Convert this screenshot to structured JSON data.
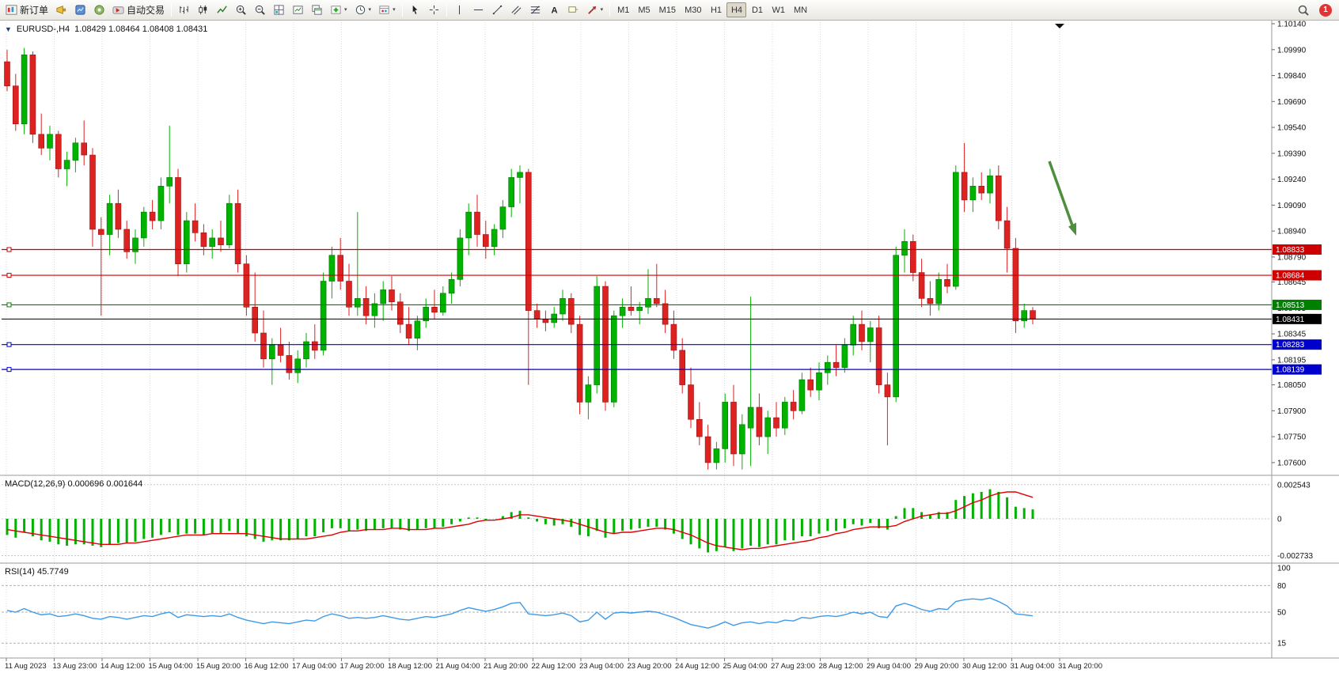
{
  "toolbar": {
    "new_order": "新订单",
    "autotrading": "自动交易",
    "timeframes": [
      "M1",
      "M5",
      "M15",
      "M30",
      "H1",
      "H4",
      "D1",
      "W1",
      "MN"
    ],
    "active_timeframe": "H4",
    "notification_count": "1",
    "icons": [
      "new-order-icon",
      "metaeditor-icon",
      "market-watch-icon",
      "community-icon",
      "autotrading-icon",
      "bar-chart-icon",
      "candlestick-chart-icon",
      "line-chart-icon",
      "zoom-in-icon",
      "zoom-out-icon",
      "tile-windows-icon",
      "arrange-windows-icon",
      "cascade-windows-icon",
      "indicators-icon",
      "periods-icon",
      "templates-icon",
      "cursor-icon",
      "crosshair-icon",
      "vertical-line-icon",
      "horizontal-line-icon",
      "trendline-icon",
      "channel-icon",
      "fibonacci-icon",
      "text-icon",
      "text-label-icon",
      "arrows-icon",
      "search-icon"
    ]
  },
  "chart": {
    "symbol_label": "EURUSD-,H4",
    "ohlc_label": "1.08429 1.08464 1.08408 1.08431",
    "price_axis_labels": [
      "1.10140",
      "1.09990",
      "1.09840",
      "1.09690",
      "1.09540",
      "1.09390",
      "1.09240",
      "1.09090",
      "1.08940",
      "1.08790",
      "1.08645",
      "1.08495",
      "1.08345",
      "1.08195",
      "1.08050",
      "1.07900",
      "1.07750",
      "1.07600"
    ],
    "time_axis_labels": [
      "11 Aug 2023",
      "13 Aug 23:00",
      "14 Aug 12:00",
      "15 Aug 04:00",
      "15 Aug 20:00",
      "16 Aug 12:00",
      "17 Aug 04:00",
      "17 Aug 20:00",
      "18 Aug 12:00",
      "21 Aug 04:00",
      "21 Aug 20:00",
      "22 Aug 12:00",
      "23 Aug 04:00",
      "23 Aug 20:00",
      "24 Aug 12:00",
      "25 Aug 04:00",
      "27 Aug 23:00",
      "28 Aug 12:00",
      "29 Aug 04:00",
      "29 Aug 20:00",
      "30 Aug 12:00",
      "31 Aug 04:00",
      "31 Aug 20:00"
    ],
    "price_tags": [
      {
        "text": "1.08833",
        "price": 1.08833,
        "color": "#cc0000",
        "current": false
      },
      {
        "text": "1.08684",
        "price": 1.08684,
        "color": "#cc0000",
        "current": false
      },
      {
        "text": "1.08513",
        "price": 1.08513,
        "color": "#008000",
        "current": false
      },
      {
        "text": "1.08431",
        "price": 1.08431,
        "color": "#000000",
        "current": true
      },
      {
        "text": "1.08283",
        "price": 1.08283,
        "color": "#0000cc",
        "current": false
      },
      {
        "text": "1.08139",
        "price": 1.08139,
        "color": "#0000cc",
        "current": false
      }
    ],
    "arrow_color": "#4e8f3e"
  },
  "chart_data": {
    "type": "candlestick",
    "symbol": "EURUSD-",
    "timeframe": "H4",
    "current_ohlc": {
      "open": 1.08429,
      "high": 1.08464,
      "low": 1.08408,
      "close": 1.08431
    },
    "price_range": [
      1.076,
      1.1014
    ],
    "up_color": "#00b300",
    "down_color": "#dd2222",
    "candles": [
      [
        1.0992,
        1.0999,
        1.0975,
        1.0978
      ],
      [
        1.0978,
        1.0985,
        1.0952,
        1.0956
      ],
      [
        1.0956,
        1.1,
        1.095,
        1.0996
      ],
      [
        1.0996,
        1.0998,
        1.0945,
        1.095
      ],
      [
        1.095,
        1.0962,
        1.0938,
        1.0942
      ],
      [
        1.0942,
        1.0955,
        1.0935,
        1.095
      ],
      [
        1.095,
        1.0952,
        1.0925,
        1.093
      ],
      [
        1.093,
        1.094,
        1.092,
        1.0935
      ],
      [
        1.0935,
        1.0948,
        1.0928,
        1.0945
      ],
      [
        1.0945,
        1.0958,
        1.0932,
        1.0938
      ],
      [
        1.0938,
        1.0942,
        1.0885,
        1.0895
      ],
      [
        1.0895,
        1.0902,
        1.0845,
        1.0892
      ],
      [
        1.0892,
        1.0915,
        1.088,
        1.091
      ],
      [
        1.091,
        1.0918,
        1.089,
        1.0895
      ],
      [
        1.0895,
        1.09,
        1.0878,
        1.0882
      ],
      [
        1.0882,
        1.0895,
        1.0875,
        1.089
      ],
      [
        1.089,
        1.0908,
        1.0885,
        1.0905
      ],
      [
        1.0905,
        1.0912,
        1.0895,
        1.09
      ],
      [
        1.09,
        1.0925,
        1.0895,
        1.092
      ],
      [
        1.092,
        1.0955,
        1.091,
        1.0925
      ],
      [
        1.0925,
        1.093,
        1.0868,
        1.0875
      ],
      [
        1.0875,
        1.0905,
        1.087,
        1.09
      ],
      [
        1.09,
        1.091,
        1.0888,
        1.0893
      ],
      [
        1.0893,
        1.0898,
        1.088,
        1.0885
      ],
      [
        1.0885,
        1.0895,
        1.0878,
        1.089
      ],
      [
        1.089,
        1.09,
        1.0882,
        1.0886
      ],
      [
        1.0886,
        1.0915,
        1.0884,
        1.091
      ],
      [
        1.091,
        1.0918,
        1.087,
        1.0875
      ],
      [
        1.0875,
        1.088,
        1.0845,
        1.085
      ],
      [
        1.085,
        1.087,
        1.083,
        1.0835
      ],
      [
        1.0835,
        1.0848,
        1.0815,
        1.082
      ],
      [
        1.082,
        1.0832,
        1.0805,
        1.0828
      ],
      [
        1.0828,
        1.0838,
        1.0818,
        1.0822
      ],
      [
        1.0822,
        1.083,
        1.0808,
        1.0812
      ],
      [
        1.0812,
        1.0825,
        1.0806,
        1.082
      ],
      [
        1.082,
        1.0835,
        1.0815,
        1.083
      ],
      [
        1.083,
        1.084,
        1.082,
        1.0825
      ],
      [
        1.0825,
        1.087,
        1.0822,
        1.0865
      ],
      [
        1.0865,
        1.0885,
        1.0855,
        1.088
      ],
      [
        1.088,
        1.089,
        1.086,
        1.0865
      ],
      [
        1.0865,
        1.0875,
        1.0845,
        1.085
      ],
      [
        1.085,
        1.0905,
        1.0845,
        1.0855
      ],
      [
        1.0855,
        1.0862,
        1.084,
        1.0845
      ],
      [
        1.0845,
        1.0858,
        1.0838,
        1.0852
      ],
      [
        1.0852,
        1.0865,
        1.0842,
        1.086
      ],
      [
        1.086,
        1.0868,
        1.0848,
        1.0853
      ],
      [
        1.0853,
        1.0858,
        1.0835,
        1.084
      ],
      [
        1.084,
        1.085,
        1.0828,
        1.0832
      ],
      [
        1.0832,
        1.0845,
        1.0825,
        1.0842
      ],
      [
        1.0842,
        1.0855,
        1.0838,
        1.085
      ],
      [
        1.085,
        1.086,
        1.0843,
        1.0847
      ],
      [
        1.0847,
        1.0862,
        1.0845,
        1.0858
      ],
      [
        1.0858,
        1.087,
        1.0852,
        1.0866
      ],
      [
        1.0866,
        1.0895,
        1.0862,
        1.089
      ],
      [
        1.089,
        1.091,
        1.088,
        1.0905
      ],
      [
        1.0905,
        1.0915,
        1.0885,
        1.0892
      ],
      [
        1.0892,
        1.09,
        1.0878,
        1.0885
      ],
      [
        1.0885,
        1.0898,
        1.088,
        1.0895
      ],
      [
        1.0895,
        1.0912,
        1.089,
        1.0908
      ],
      [
        1.0908,
        1.093,
        1.0902,
        1.0925
      ],
      [
        1.0925,
        1.0932,
        1.091,
        1.0928
      ],
      [
        1.0928,
        1.093,
        1.0805,
        1.0848
      ],
      [
        1.0848,
        1.0852,
        1.0838,
        1.0843
      ],
      [
        1.0843,
        1.0848,
        1.0836,
        1.0841
      ],
      [
        1.0841,
        1.085,
        1.0838,
        1.0846
      ],
      [
        1.0846,
        1.086,
        1.0842,
        1.0855
      ],
      [
        1.0855,
        1.0858,
        1.0835,
        1.084
      ],
      [
        1.084,
        1.0845,
        1.0788,
        1.0795
      ],
      [
        1.0795,
        1.081,
        1.0785,
        1.0805
      ],
      [
        1.0805,
        1.0868,
        1.08,
        1.0862
      ],
      [
        1.0862,
        1.0865,
        1.079,
        1.0795
      ],
      [
        1.0795,
        1.0848,
        1.0792,
        1.0845
      ],
      [
        1.0845,
        1.0855,
        1.0838,
        1.085
      ],
      [
        1.085,
        1.0862,
        1.0845,
        1.0848
      ],
      [
        1.0848,
        1.0853,
        1.084,
        1.085
      ],
      [
        1.085,
        1.0872,
        1.0846,
        1.0855
      ],
      [
        1.0855,
        1.0875,
        1.085,
        1.0852
      ],
      [
        1.0852,
        1.086,
        1.0835,
        1.084
      ],
      [
        1.084,
        1.0848,
        1.082,
        1.0825
      ],
      [
        1.0825,
        1.0832,
        1.08,
        1.0805
      ],
      [
        1.0805,
        1.0815,
        1.078,
        1.0785
      ],
      [
        1.0785,
        1.0795,
        1.077,
        1.0775
      ],
      [
        1.0775,
        1.0782,
        1.0756,
        1.076
      ],
      [
        1.076,
        1.0772,
        1.0756,
        1.0768
      ],
      [
        1.0768,
        1.08,
        1.076,
        1.0795
      ],
      [
        1.0795,
        1.0805,
        1.0758,
        1.0765
      ],
      [
        1.0765,
        1.0788,
        1.0756,
        1.0782
      ],
      [
        1.078,
        1.0856,
        1.0758,
        1.0792
      ],
      [
        1.0792,
        1.08,
        1.077,
        1.0775
      ],
      [
        1.0775,
        1.079,
        1.0765,
        1.0786
      ],
      [
        1.0786,
        1.0795,
        1.0775,
        1.078
      ],
      [
        1.078,
        1.0798,
        1.0776,
        1.0795
      ],
      [
        1.0795,
        1.0802,
        1.0785,
        1.079
      ],
      [
        1.079,
        1.0812,
        1.0788,
        1.0808
      ],
      [
        1.0808,
        1.0815,
        1.0798,
        1.0802
      ],
      [
        1.0802,
        1.0818,
        1.0796,
        1.0812
      ],
      [
        1.0812,
        1.0822,
        1.0805,
        1.0818
      ],
      [
        1.0818,
        1.0828,
        1.081,
        1.0815
      ],
      [
        1.0815,
        1.0832,
        1.0812,
        1.0828
      ],
      [
        1.0828,
        1.0845,
        1.0822,
        1.084
      ],
      [
        1.084,
        1.0848,
        1.0825,
        1.083
      ],
      [
        1.083,
        1.0842,
        1.0818,
        1.0838
      ],
      [
        1.0838,
        1.0845,
        1.08,
        1.0805
      ],
      [
        1.0805,
        1.0812,
        1.077,
        1.0798
      ],
      [
        1.0798,
        1.0885,
        1.0795,
        1.088
      ],
      [
        1.088,
        1.0895,
        1.087,
        1.0888
      ],
      [
        1.0888,
        1.0892,
        1.0865,
        1.087
      ],
      [
        1.087,
        1.0878,
        1.085,
        1.0855
      ],
      [
        1.0855,
        1.0865,
        1.0845,
        1.0852
      ],
      [
        1.0852,
        1.087,
        1.0848,
        1.0866
      ],
      [
        1.0866,
        1.0875,
        1.0858,
        1.0862
      ],
      [
        1.0862,
        1.0932,
        1.086,
        1.0928
      ],
      [
        1.0928,
        1.0945,
        1.0905,
        1.0912
      ],
      [
        1.0912,
        1.0925,
        1.0905,
        1.092
      ],
      [
        1.092,
        1.0928,
        1.0912,
        1.0916
      ],
      [
        1.0916,
        1.093,
        1.091,
        1.0926
      ],
      [
        1.0926,
        1.0932,
        1.0895,
        1.09
      ],
      [
        1.09,
        1.0908,
        1.087,
        1.0884
      ],
      [
        1.0884,
        1.089,
        1.0835,
        1.0842
      ],
      [
        1.0842,
        1.0852,
        1.0838,
        1.0848
      ],
      [
        1.0848,
        1.085,
        1.084,
        1.08431
      ]
    ],
    "macd": {
      "title_text": "MACD(12,26,9) 0.000696 0.001644",
      "main_value": 0.000696,
      "signal_value": 0.001644,
      "scale_labels": [
        "0.002543",
        "0",
        "-0.002733"
      ],
      "histogram_color": "#00b300",
      "signal_color": "#e00000",
      "histogram_x1e4": [
        -12,
        -14,
        -10,
        -13,
        -16,
        -17,
        -19,
        -20,
        -19,
        -19,
        -20,
        -21,
        -19,
        -18,
        -18,
        -17,
        -15,
        -14,
        -12,
        -10,
        -12,
        -11,
        -11,
        -12,
        -11,
        -11,
        -9,
        -11,
        -13,
        -15,
        -17,
        -16,
        -16,
        -16,
        -15,
        -13,
        -13,
        -10,
        -7,
        -7,
        -9,
        -8,
        -9,
        -8,
        -7,
        -7,
        -8,
        -9,
        -8,
        -7,
        -7,
        -6,
        -4,
        -2,
        1,
        1,
        -1,
        0,
        2,
        5,
        6,
        1,
        -2,
        -4,
        -5,
        -4,
        -6,
        -12,
        -13,
        -9,
        -14,
        -11,
        -9,
        -8,
        -7,
        -6,
        -6,
        -8,
        -11,
        -15,
        -19,
        -22,
        -25,
        -24,
        -21,
        -24,
        -22,
        -20,
        -21,
        -19,
        -19,
        -16,
        -16,
        -13,
        -13,
        -11,
        -9,
        -9,
        -7,
        -4,
        -5,
        -3,
        -7,
        -8,
        2,
        8,
        8,
        5,
        3,
        5,
        5,
        14,
        17,
        19,
        20,
        22,
        20,
        16,
        9,
        8,
        7
      ],
      "signal_x1e4": [
        -8,
        -9,
        -10,
        -11,
        -12,
        -13,
        -14,
        -15,
        -16,
        -17,
        -18,
        -19,
        -19,
        -19,
        -18,
        -18,
        -17,
        -16,
        -15,
        -14,
        -13,
        -12,
        -12,
        -12,
        -11,
        -11,
        -11,
        -11,
        -11,
        -12,
        -13,
        -14,
        -15,
        -15,
        -15,
        -15,
        -14,
        -13,
        -12,
        -10,
        -9,
        -9,
        -8,
        -8,
        -8,
        -7,
        -7,
        -8,
        -8,
        -8,
        -7,
        -7,
        -6,
        -5,
        -4,
        -2,
        -1,
        -1,
        0,
        1,
        3,
        3,
        2,
        1,
        0,
        -1,
        -2,
        -4,
        -6,
        -8,
        -10,
        -11,
        -10,
        -10,
        -9,
        -8,
        -7,
        -7,
        -8,
        -10,
        -12,
        -15,
        -18,
        -20,
        -21,
        -22,
        -23,
        -22,
        -22,
        -21,
        -20,
        -19,
        -18,
        -17,
        -16,
        -14,
        -13,
        -11,
        -10,
        -8,
        -7,
        -6,
        -6,
        -6,
        -5,
        -2,
        0,
        2,
        3,
        4,
        4,
        6,
        9,
        12,
        14,
        17,
        19,
        20,
        20,
        18,
        16
      ]
    },
    "rsi": {
      "title_text": "RSI(14) 45.7749",
      "current_value": 45.7749,
      "line_color": "#3d9ae8",
      "levels": [
        100,
        80,
        50,
        15
      ],
      "values": [
        52,
        50,
        54,
        50,
        47,
        48,
        45,
        46,
        48,
        46,
        43,
        42,
        45,
        44,
        42,
        44,
        46,
        45,
        48,
        50,
        44,
        47,
        46,
        45,
        46,
        45,
        48,
        44,
        41,
        39,
        37,
        39,
        38,
        37,
        39,
        41,
        40,
        45,
        48,
        46,
        43,
        44,
        43,
        44,
        46,
        44,
        42,
        41,
        43,
        45,
        44,
        46,
        48,
        52,
        55,
        53,
        51,
        53,
        56,
        60,
        61,
        48,
        47,
        46,
        47,
        49,
        46,
        39,
        41,
        50,
        42,
        49,
        50,
        49,
        50,
        51,
        50,
        47,
        44,
        40,
        36,
        34,
        32,
        35,
        39,
        35,
        38,
        39,
        37,
        39,
        38,
        41,
        40,
        44,
        43,
        45,
        46,
        45,
        47,
        50,
        48,
        50,
        45,
        44,
        57,
        60,
        57,
        53,
        51,
        54,
        53,
        62,
        64,
        65,
        64,
        66,
        62,
        57,
        48,
        47,
        45.77
      ]
    }
  }
}
